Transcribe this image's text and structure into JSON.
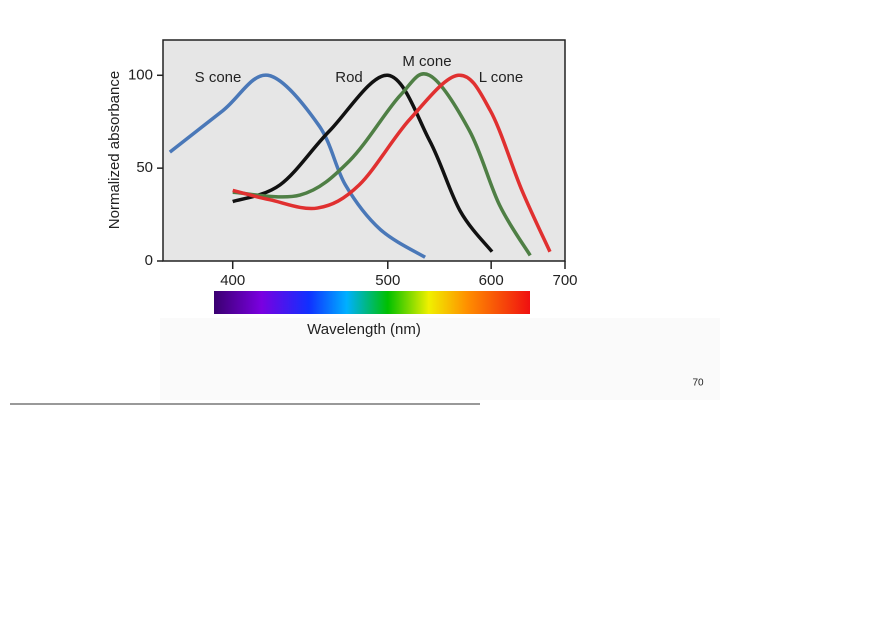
{
  "chart_data": {
    "type": "line",
    "ylabel": "Normalized absorbance",
    "xlabel": "Wavelength (nm)",
    "xscale": "reciprocal",
    "xlim": [
      367,
      700
    ],
    "xticks": [
      400,
      500,
      600,
      700
    ],
    "ylim": [
      0,
      119
    ],
    "yticks": [
      0,
      50,
      100
    ],
    "series": [
      {
        "name": "S cone",
        "color": "#4a78b8",
        "x": [
          370,
          395,
          419,
          450,
          468,
          494,
          532
        ],
        "values": [
          58.6,
          81,
          100,
          73,
          41,
          17,
          2
        ]
      },
      {
        "name": "Rod",
        "color": "#111111",
        "x": [
          400,
          426,
          457,
          500,
          536,
          566,
          601
        ],
        "values": [
          32,
          41,
          70,
          100,
          65,
          27,
          5
        ]
      },
      {
        "name": "M cone",
        "color": "#4f7f45",
        "x": [
          400,
          438,
          471,
          510,
          536,
          576,
          610,
          649
        ],
        "values": [
          37,
          35.5,
          54,
          89,
          100,
          70,
          30,
          3
        ]
      },
      {
        "name": "L cone",
        "color": "#e03030",
        "x": [
          400,
          420,
          449,
          478,
          518,
          564,
          599,
          638,
          677
        ],
        "values": [
          38,
          33,
          28.5,
          41,
          76,
          100,
          81,
          38,
          5
        ]
      }
    ]
  },
  "page_number": "70"
}
